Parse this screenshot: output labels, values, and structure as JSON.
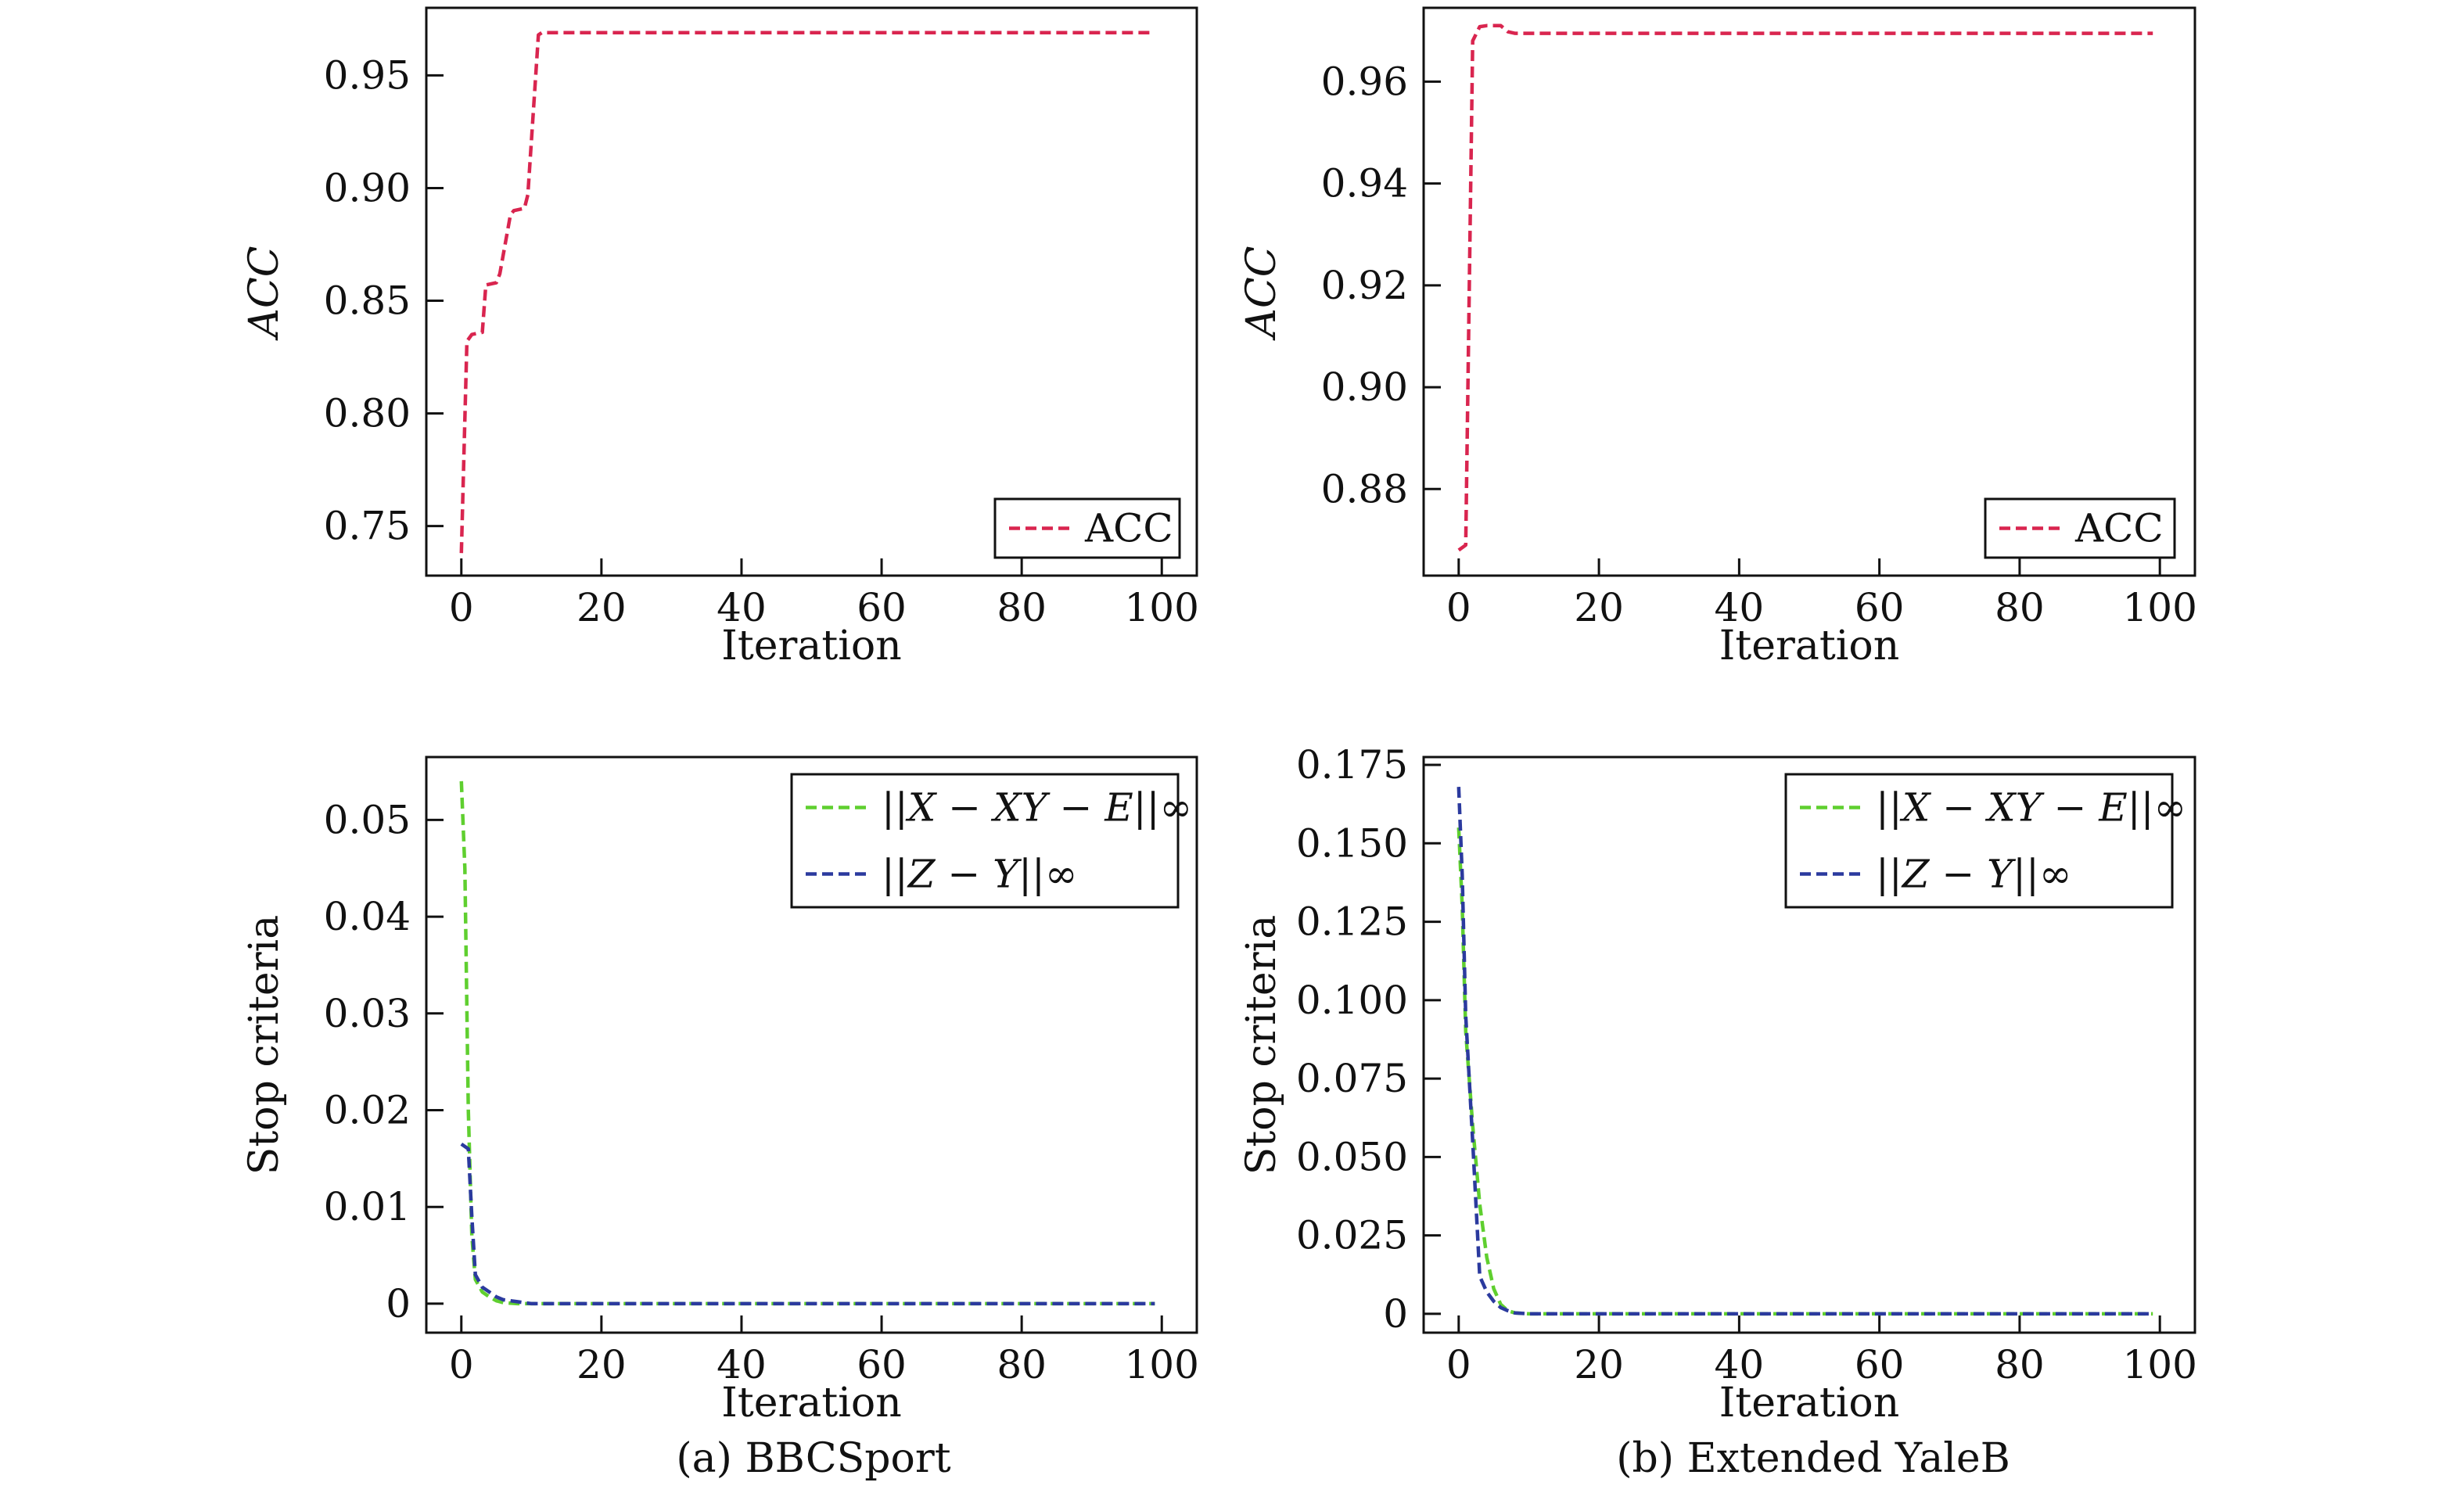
{
  "colors": {
    "acc": "#d9254f",
    "green": "#5fcf2f",
    "blue": "#2b3a9e",
    "axis": "#111111"
  },
  "captions": [
    "(a) BBCSport",
    "(b) Extended YaleB"
  ],
  "chart_data": [
    {
      "id": "a-acc",
      "type": "line",
      "xlabel": "Iteration",
      "ylabel": "ACC",
      "xlim": [
        -5,
        105
      ],
      "ylim": [
        0.728,
        0.98
      ],
      "xticks": [
        0,
        20,
        40,
        60,
        80,
        100
      ],
      "xtick_labels": [
        "0",
        "20",
        "40",
        "60",
        "80",
        "100"
      ],
      "yticks": [
        0.75,
        0.8,
        0.85,
        0.9,
        0.95
      ],
      "ytick_labels": [
        "0.75",
        "0.80",
        "0.85",
        "0.90",
        "0.95"
      ],
      "legend_position": "bottom-right",
      "series": [
        {
          "name": "ACC",
          "color": "#d9254f",
          "x": [
            0,
            0.8,
            1.5,
            3,
            3.5,
            5,
            5.5,
            7,
            7.5,
            9,
            9.5,
            11,
            11.5,
            20,
            40,
            60,
            80,
            99
          ],
          "y": [
            0.738,
            0.832,
            0.835,
            0.836,
            0.857,
            0.858,
            0.862,
            0.888,
            0.89,
            0.891,
            0.897,
            0.968,
            0.969,
            0.969,
            0.969,
            0.969,
            0.969,
            0.969
          ]
        }
      ]
    },
    {
      "id": "b-acc",
      "type": "line",
      "xlabel": "Iteration",
      "ylabel": "ACC",
      "xlim": [
        -5,
        105
      ],
      "ylim": [
        0.863,
        0.9745
      ],
      "xticks": [
        0,
        20,
        40,
        60,
        80,
        100
      ],
      "xtick_labels": [
        "0",
        "20",
        "40",
        "60",
        "80",
        "100"
      ],
      "yticks": [
        0.88,
        0.9,
        0.92,
        0.94,
        0.96
      ],
      "ytick_labels": [
        "0.88",
        "0.90",
        "0.92",
        "0.94",
        "0.96"
      ],
      "legend_position": "bottom-right",
      "series": [
        {
          "name": "ACC",
          "color": "#d9254f",
          "x": [
            0,
            1,
            2,
            3,
            4,
            5,
            6,
            7,
            8,
            20,
            40,
            60,
            80,
            99
          ],
          "y": [
            0.868,
            0.869,
            0.968,
            0.9708,
            0.971,
            0.971,
            0.971,
            0.9698,
            0.9695,
            0.9695,
            0.9695,
            0.9695,
            0.9695,
            0.9695
          ]
        }
      ]
    },
    {
      "id": "a-stop",
      "type": "line",
      "xlabel": "Iteration",
      "ylabel": "Stop criteria",
      "xlim": [
        -5,
        105
      ],
      "ylim": [
        -0.003,
        0.0565
      ],
      "xticks": [
        0,
        20,
        40,
        60,
        80,
        100
      ],
      "xtick_labels": [
        "0",
        "20",
        "40",
        "60",
        "80",
        "100"
      ],
      "yticks": [
        0,
        0.01,
        0.02,
        0.03,
        0.04,
        0.05
      ],
      "ytick_labels": [
        "0",
        "0.01",
        "0.02",
        "0.03",
        "0.04",
        "0.05"
      ],
      "legend_position": "top-right",
      "series": [
        {
          "name": "||X − XY − E||∞",
          "color": "#5fcf2f",
          "x": [
            0,
            0.5,
            1,
            1.5,
            2,
            3,
            4,
            5,
            6,
            8,
            10,
            20,
            40,
            60,
            80,
            99
          ],
          "y": [
            0.054,
            0.045,
            0.02,
            0.007,
            0.0025,
            0.0012,
            0.0007,
            0.0003,
            0.0001,
            0,
            0,
            0,
            0,
            0,
            0,
            0
          ]
        },
        {
          "name": "||Z − Y||∞",
          "color": "#2b3a9e",
          "x": [
            0,
            1,
            1.5,
            2,
            3,
            4,
            5,
            6,
            8,
            10,
            20,
            40,
            60,
            80,
            99
          ],
          "y": [
            0.0165,
            0.016,
            0.009,
            0.003,
            0.0017,
            0.0012,
            0.0007,
            0.0004,
            0.0002,
            0,
            0,
            0,
            0,
            0,
            0
          ]
        }
      ]
    },
    {
      "id": "b-stop",
      "type": "line",
      "xlabel": "Iteration",
      "ylabel": "Stop criteria",
      "xlim": [
        -5,
        105
      ],
      "ylim": [
        -0.006,
        0.1775
      ],
      "xticks": [
        0,
        20,
        40,
        60,
        80,
        100
      ],
      "xtick_labels": [
        "0",
        "20",
        "40",
        "60",
        "80",
        "100"
      ],
      "yticks": [
        0,
        0.025,
        0.05,
        0.075,
        0.1,
        0.125,
        0.15,
        0.175
      ],
      "ytick_labels": [
        "0",
        "0.025",
        "0.050",
        "0.075",
        "0.100",
        "0.125",
        "0.150",
        "0.175"
      ],
      "legend_position": "top-right",
      "series": [
        {
          "name": "||X − XY − E||∞",
          "color": "#5fcf2f",
          "x": [
            0,
            0.5,
            1,
            2,
            3,
            4,
            5,
            6,
            7,
            8,
            10,
            20,
            40,
            60,
            80,
            99
          ],
          "y": [
            0.155,
            0.13,
            0.09,
            0.06,
            0.035,
            0.018,
            0.008,
            0.003,
            0.001,
            0.0003,
            0,
            0,
            0,
            0,
            0,
            0
          ]
        },
        {
          "name": "||Z − Y||∞",
          "color": "#2b3a9e",
          "x": [
            0,
            0.5,
            1,
            2,
            3,
            4,
            5,
            6,
            7,
            8,
            10,
            20,
            40,
            60,
            80,
            99
          ],
          "y": [
            0.168,
            0.14,
            0.095,
            0.055,
            0.012,
            0.007,
            0.004,
            0.002,
            0.001,
            0.0003,
            0,
            0,
            0,
            0,
            0,
            0
          ]
        }
      ]
    }
  ]
}
